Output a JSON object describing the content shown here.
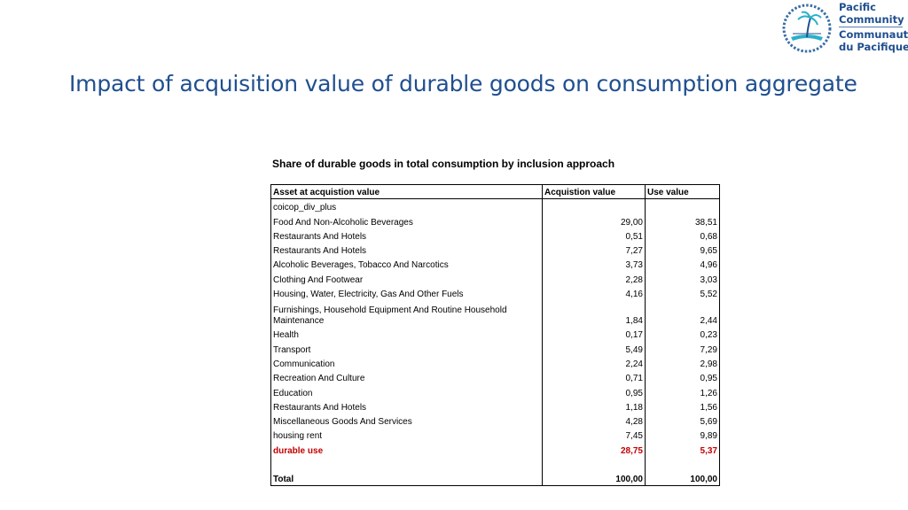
{
  "page": {
    "title": "Impact of acquisition value of durable goods on consumption aggregate"
  },
  "logo": {
    "line1": "Pacific",
    "line2": "Community",
    "line3": "Communauté",
    "line4": "du Pacifique"
  },
  "table": {
    "caption": "Share of durable goods in total consumption by inclusion approach",
    "headers": [
      "Asset at acquistion value",
      "Acquistion value",
      "Use value"
    ],
    "group_label": "coicop_div_plus",
    "rows": [
      {
        "label": "Food And Non-Alcoholic Beverages",
        "acq": "29,00",
        "use": "38,51"
      },
      {
        "label": "Restaurants And Hotels",
        "acq": "0,51",
        "use": "0,68"
      },
      {
        "label": "Restaurants And Hotels",
        "acq": "7,27",
        "use": "9,65"
      },
      {
        "label": "Alcoholic Beverages, Tobacco And Narcotics",
        "acq": "3,73",
        "use": "4,96"
      },
      {
        "label": "Clothing And Footwear",
        "acq": "2,28",
        "use": "3,03"
      },
      {
        "label": "Housing, Water, Electricity, Gas And Other Fuels",
        "acq": "4,16",
        "use": "5,52"
      },
      {
        "label": "Furnishings, Household Equipment And Routine Household Maintenance",
        "acq": "1,84",
        "use": "2,44"
      },
      {
        "label": "Health",
        "acq": "0,17",
        "use": "0,23"
      },
      {
        "label": "Transport",
        "acq": "5,49",
        "use": "7,29"
      },
      {
        "label": "Communication",
        "acq": "2,24",
        "use": "2,98"
      },
      {
        "label": "Recreation And Culture",
        "acq": "0,71",
        "use": "0,95"
      },
      {
        "label": "Education",
        "acq": "0,95",
        "use": "1,26"
      },
      {
        "label": "Restaurants And Hotels",
        "acq": "1,18",
        "use": "1,56"
      },
      {
        "label": "Miscellaneous Goods And Services",
        "acq": "4,28",
        "use": "5,69"
      },
      {
        "label": "housing rent",
        "acq": "7,45",
        "use": "9,89"
      }
    ],
    "durable": {
      "label": "durable use",
      "acq": "28,75",
      "use": "5,37"
    },
    "total": {
      "label": "Total",
      "acq": "100,00",
      "use": "100,00"
    }
  },
  "colors": {
    "title": "#1f4f8f",
    "highlight": "#c00000"
  }
}
